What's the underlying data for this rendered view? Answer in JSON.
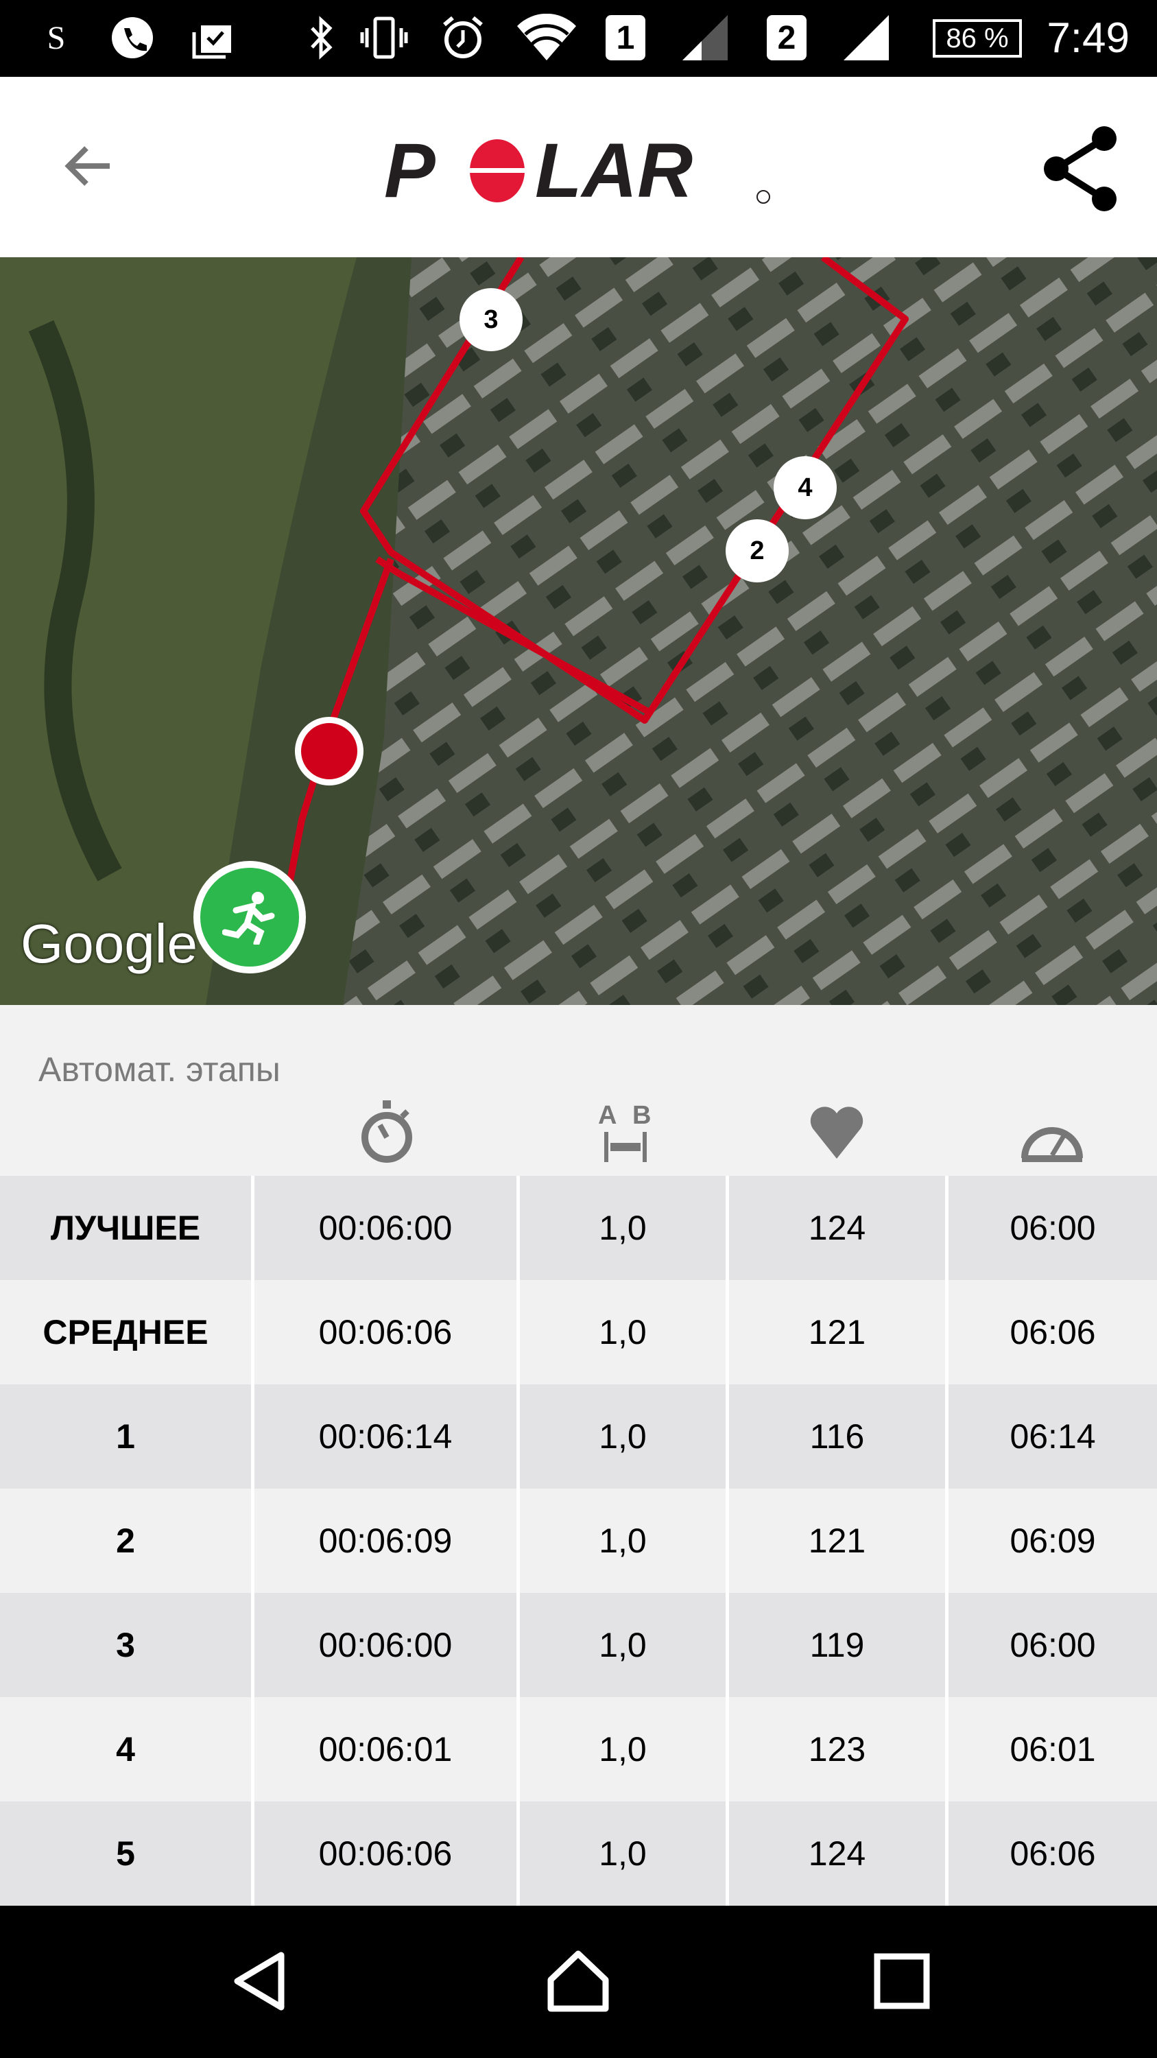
{
  "status_bar": {
    "time": "7:49",
    "battery": "86 %",
    "sim1": "1",
    "sim2": "2",
    "icons": [
      "s-app-icon",
      "phone-icon",
      "clipboard-check-icon",
      "bluetooth-icon",
      "vibrate-icon",
      "alarm-icon",
      "wifi-icon",
      "signal-icon",
      "signal-icon"
    ]
  },
  "app_bar": {
    "logo": "POLAR",
    "back_icon": "arrow-left-icon",
    "share_icon": "share-icon"
  },
  "map": {
    "attribution": "Google",
    "lap_markers": [
      "3",
      "4",
      "2"
    ],
    "route_color": "#d0021b",
    "start_marker_icon": "running-person-icon",
    "start_color": "#2db84d"
  },
  "laps": {
    "title": "Автомат. этапы",
    "column_icons": [
      "stopwatch-icon",
      "distance-ab-icon",
      "heart-icon",
      "speedometer-icon"
    ],
    "rows": [
      [
        "ЛУЧШЕЕ",
        "00:06:00",
        "1,0",
        "124",
        "06:00"
      ],
      [
        "СРЕДНЕЕ",
        "00:06:06",
        "1,0",
        "121",
        "06:06"
      ],
      [
        "1",
        "00:06:14",
        "1,0",
        "116",
        "06:14"
      ],
      [
        "2",
        "00:06:09",
        "1,0",
        "121",
        "06:09"
      ],
      [
        "3",
        "00:06:00",
        "1,0",
        "119",
        "06:00"
      ],
      [
        "4",
        "00:06:01",
        "1,0",
        "123",
        "06:01"
      ],
      [
        "5",
        "00:06:06",
        "1,0",
        "124",
        "06:06"
      ]
    ]
  },
  "nav_bar": {
    "icons": [
      "back-triangle-icon",
      "home-icon",
      "recents-square-icon"
    ]
  }
}
